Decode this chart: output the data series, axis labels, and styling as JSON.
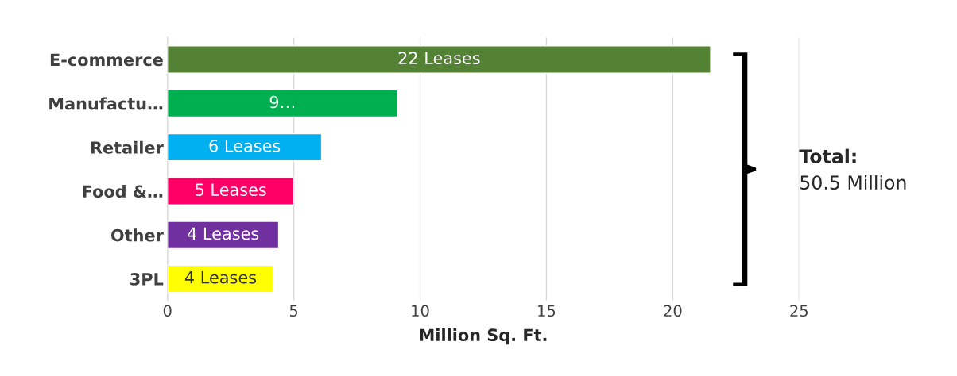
{
  "chart_data": {
    "type": "bar",
    "orientation": "horizontal",
    "xlabel": "Million Sq. Ft.",
    "categories": [
      "E-commerce",
      "Manufactu…",
      "Retailer",
      "Food &…",
      "Other",
      "3PL"
    ],
    "values": [
      21.5,
      9.1,
      6.1,
      5.0,
      4.4,
      4.2
    ],
    "colors": [
      "#548235",
      "#00b050",
      "#00b0f0",
      "#ff0066",
      "#7030a0",
      "#ffff00"
    ],
    "value_labels": [
      "22 Leases",
      "9…",
      "6 Leases",
      "5 Leases",
      "4 Leases",
      "4 Leases"
    ],
    "xlim": [
      0,
      25
    ],
    "xticks": [
      0,
      5,
      10,
      15,
      20,
      25
    ],
    "grid": "x",
    "annotations": [
      "Total:",
      "50.5 Million"
    ]
  }
}
